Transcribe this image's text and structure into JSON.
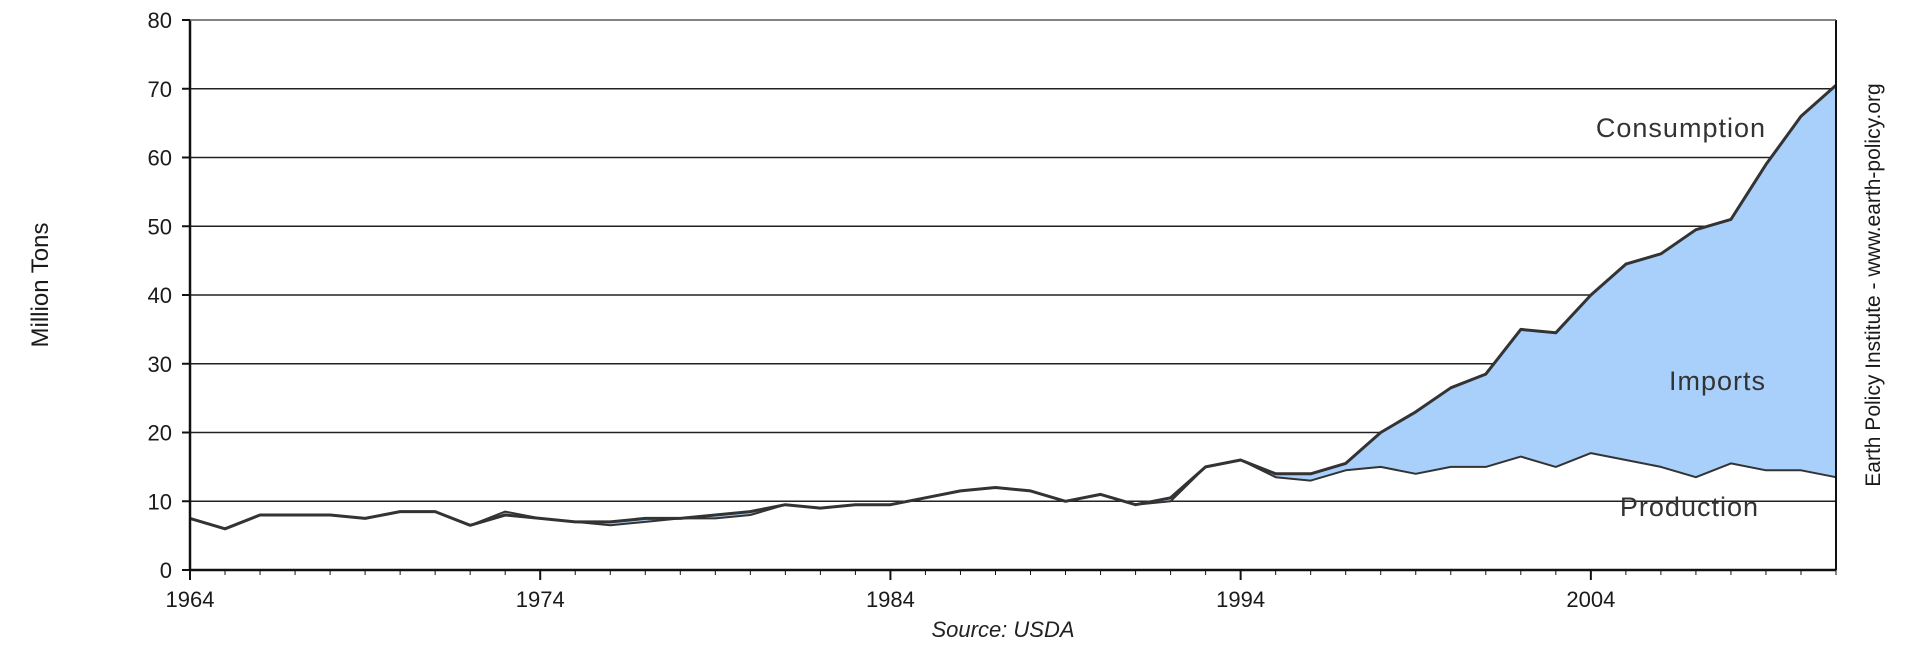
{
  "chart_data": {
    "type": "area",
    "title": "",
    "xlabel": "",
    "ylabel": "Million Tons",
    "source": "Source: USDA",
    "watermark": "Earth Policy Institute - www.earth-policy.org",
    "xlim": [
      1964,
      2011
    ],
    "ylim": [
      0,
      80
    ],
    "x_ticks": [
      1964,
      1974,
      1984,
      1994,
      2004
    ],
    "y_ticks": [
      0,
      10,
      20,
      30,
      40,
      50,
      60,
      70,
      80
    ],
    "grid": "horizontal",
    "annotations": [
      "Consumption",
      "Imports",
      "Production"
    ],
    "x": [
      1964,
      1965,
      1966,
      1967,
      1968,
      1969,
      1970,
      1971,
      1972,
      1973,
      1974,
      1975,
      1976,
      1977,
      1978,
      1979,
      1980,
      1981,
      1982,
      1983,
      1984,
      1985,
      1986,
      1987,
      1988,
      1989,
      1990,
      1991,
      1992,
      1993,
      1994,
      1995,
      1996,
      1997,
      1998,
      1999,
      2000,
      2001,
      2002,
      2003,
      2004,
      2005,
      2006,
      2007,
      2008,
      2009,
      2010,
      2011
    ],
    "series": [
      {
        "name": "Consumption",
        "values": [
          7.5,
          6.0,
          8.0,
          8.0,
          8.0,
          7.5,
          8.5,
          8.5,
          6.5,
          8.0,
          7.5,
          7.0,
          7.0,
          7.5,
          7.5,
          8.0,
          8.5,
          9.5,
          9.0,
          9.5,
          9.5,
          10.5,
          11.5,
          12.0,
          11.5,
          10.0,
          11.0,
          9.5,
          10.5,
          15.0,
          16.0,
          14.0,
          14.0,
          15.5,
          20.0,
          23.0,
          26.5,
          28.5,
          35.0,
          34.5,
          40.0,
          44.5,
          46.0,
          49.5,
          51.0,
          59.0,
          66.0,
          70.5
        ]
      },
      {
        "name": "Production",
        "values": [
          7.5,
          6.0,
          8.0,
          8.0,
          8.0,
          7.5,
          8.5,
          8.5,
          6.5,
          8.5,
          7.5,
          7.0,
          6.5,
          7.0,
          7.5,
          7.5,
          8.0,
          9.5,
          9.0,
          9.5,
          9.5,
          10.5,
          11.5,
          12.0,
          11.5,
          10.0,
          11.0,
          9.5,
          10.0,
          15.0,
          16.0,
          13.5,
          13.0,
          14.5,
          15.0,
          14.0,
          15.0,
          15.0,
          16.5,
          15.0,
          17.0,
          16.0,
          15.0,
          13.5,
          15.5,
          14.5,
          14.5,
          13.5
        ]
      }
    ],
    "colors": {
      "imports_fill": "#a9d0fa",
      "line": "#333333",
      "grid": "#222222"
    }
  }
}
